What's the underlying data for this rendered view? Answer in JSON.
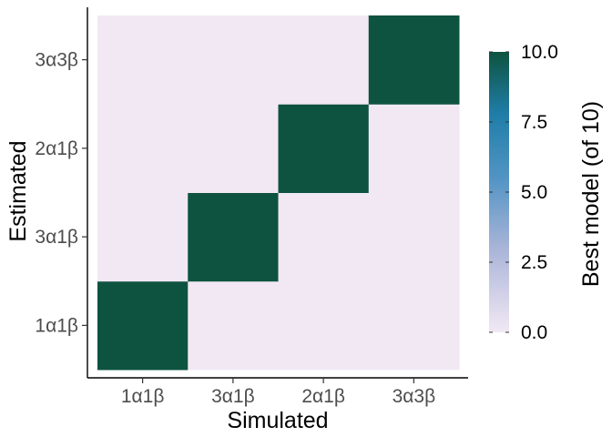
{
  "chart_data": {
    "type": "heatmap",
    "x_categories": [
      "1α1β",
      "3α1β",
      "2α1β",
      "3α3β"
    ],
    "y_categories": [
      "1α1β",
      "3α1β",
      "2α1β",
      "3α3β"
    ],
    "values": [
      [
        10,
        0,
        0,
        0
      ],
      [
        0,
        10,
        0,
        0
      ],
      [
        0,
        0,
        10,
        0
      ],
      [
        0,
        0,
        0,
        10
      ]
    ],
    "value_range": [
      0,
      10
    ],
    "xlabel": "Simulated",
    "ylabel": "Estimated",
    "grid": false,
    "legend": {
      "title": "Best model (of 10)",
      "ticks": [
        0,
        2.5,
        5,
        7.5,
        10
      ],
      "tick_labels": [
        "0.0",
        "2.5",
        "5.0",
        "7.5",
        "10.0"
      ],
      "placement": "right"
    },
    "colors": {
      "low": "#f2e8f4",
      "mid_low": "#a9b4d8",
      "mid": "#5294c4",
      "mid_high": "#1f7da8",
      "high": "#0d533f"
    }
  }
}
